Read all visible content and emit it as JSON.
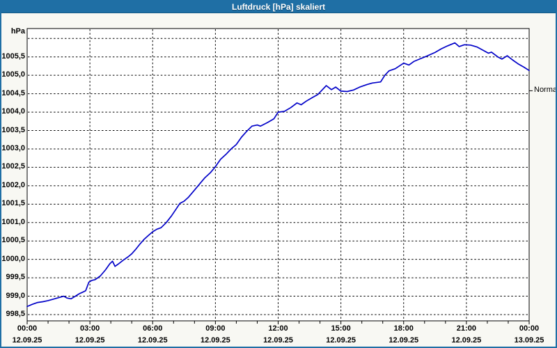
{
  "window": {
    "title": "Luftdruck [hPa] skaliert"
  },
  "colors": {
    "titlebar": "#1f6fa5",
    "window_border": "#1f6fa5",
    "chart_background": "#f8f8f3",
    "plot_background": "#ffffff",
    "line": "#0000c8",
    "grid": "#000000",
    "text": "#000000"
  },
  "chart_data": {
    "type": "line",
    "title": "Luftdruck [hPa] skaliert",
    "ylabel": "hPa",
    "right_axis_label": "Normal",
    "normal_value": 1004.58,
    "grid": "dashed",
    "legend_position": "none",
    "xlim_hours": [
      0,
      24
    ],
    "ylim": [
      998.33,
      1006.27
    ],
    "x_major_ticks": [
      {
        "hour": 0,
        "time": "00:00",
        "date": "12.09.25"
      },
      {
        "hour": 3,
        "time": "03:00",
        "date": "12.09.25"
      },
      {
        "hour": 6,
        "time": "06:00",
        "date": "12.09.25"
      },
      {
        "hour": 9,
        "time": "09:00",
        "date": "12.09.25"
      },
      {
        "hour": 12,
        "time": "12:00",
        "date": "12.09.25"
      },
      {
        "hour": 15,
        "time": "15:00",
        "date": "12.09.25"
      },
      {
        "hour": 18,
        "time": "18:00",
        "date": "12.09.25"
      },
      {
        "hour": 21,
        "time": "21:00",
        "date": "12.09.25"
      },
      {
        "hour": 24,
        "time": "00:00",
        "date": "13.09.25"
      }
    ],
    "x_minor_tick_every_hours": 1,
    "y_ticks": [
      {
        "value": 998.5,
        "label": "998,5"
      },
      {
        "value": 999.0,
        "label": "999,0"
      },
      {
        "value": 999.5,
        "label": "999,5"
      },
      {
        "value": 1000.0,
        "label": "1000,0"
      },
      {
        "value": 1000.5,
        "label": "1000,5"
      },
      {
        "value": 1001.0,
        "label": "1001,0"
      },
      {
        "value": 1001.5,
        "label": "1001,5"
      },
      {
        "value": 1002.0,
        "label": "1002,0"
      },
      {
        "value": 1002.5,
        "label": "1002,5"
      },
      {
        "value": 1003.0,
        "label": "1003,0"
      },
      {
        "value": 1003.5,
        "label": "1003,5"
      },
      {
        "value": 1004.0,
        "label": "1004,0"
      },
      {
        "value": 1004.5,
        "label": "1004,5"
      },
      {
        "value": 1005.0,
        "label": "1005,0"
      },
      {
        "value": 1005.5,
        "label": "1005,5"
      },
      {
        "value": 1006.0,
        "label": ""
      }
    ],
    "series": [
      {
        "name": "Luftdruck [hPa] skaliert",
        "color": "#0000c8",
        "x": [
          0,
          0.25,
          0.5,
          0.75,
          1,
          1.25,
          1.5,
          1.75,
          1.9,
          2.1,
          2.3,
          2.5,
          2.7,
          2.8,
          2.95,
          3.1,
          3.25,
          3.5,
          3.75,
          3.95,
          4.08,
          4.2,
          4.35,
          4.6,
          4.85,
          5,
          5.2,
          5.4,
          5.6,
          5.8,
          6,
          6.2,
          6.4,
          6.65,
          6.9,
          7.1,
          7.3,
          7.5,
          7.7,
          8,
          8.25,
          8.5,
          8.75,
          9,
          9.25,
          9.5,
          9.75,
          10,
          10.25,
          10.5,
          10.75,
          11,
          11.15,
          11.5,
          11.8,
          12,
          12.3,
          12.6,
          12.9,
          13.1,
          13.35,
          13.65,
          13.9,
          14.3,
          14.55,
          14.75,
          15,
          15.3,
          15.6,
          15.9,
          16.25,
          16.5,
          16.9,
          17.1,
          17.3,
          17.6,
          18,
          18.25,
          18.5,
          18.8,
          19.1,
          19.5,
          19.8,
          20.1,
          20.45,
          20.65,
          20.9,
          21.2,
          21.5,
          21.8,
          22.05,
          22.2,
          22.5,
          22.7,
          22.95,
          23.2,
          23.5,
          23.75,
          24
        ],
        "y": [
          998.72,
          998.78,
          998.83,
          998.85,
          998.88,
          998.92,
          998.96,
          999.0,
          998.95,
          998.93,
          999.0,
          999.07,
          999.12,
          999.15,
          999.38,
          999.43,
          999.45,
          999.55,
          999.72,
          999.88,
          999.95,
          999.81,
          999.87,
          999.98,
          1000.08,
          1000.15,
          1000.28,
          1000.42,
          1000.55,
          1000.65,
          1000.75,
          1000.82,
          1000.86,
          1001.0,
          1001.18,
          1001.35,
          1001.52,
          1001.58,
          1001.68,
          1001.88,
          1002.05,
          1002.22,
          1002.35,
          1002.52,
          1002.72,
          1002.85,
          1003.0,
          1003.12,
          1003.32,
          1003.48,
          1003.62,
          1003.65,
          1003.62,
          1003.72,
          1003.82,
          1004.0,
          1004.02,
          1004.12,
          1004.25,
          1004.2,
          1004.3,
          1004.4,
          1004.48,
          1004.72,
          1004.61,
          1004.68,
          1004.57,
          1004.56,
          1004.6,
          1004.68,
          1004.75,
          1004.79,
          1004.82,
          1005.0,
          1005.12,
          1005.18,
          1005.33,
          1005.28,
          1005.38,
          1005.45,
          1005.52,
          1005.62,
          1005.72,
          1005.8,
          1005.88,
          1005.78,
          1005.83,
          1005.82,
          1005.77,
          1005.68,
          1005.6,
          1005.63,
          1005.5,
          1005.44,
          1005.53,
          1005.42,
          1005.3,
          1005.22,
          1005.13
        ]
      }
    ]
  }
}
